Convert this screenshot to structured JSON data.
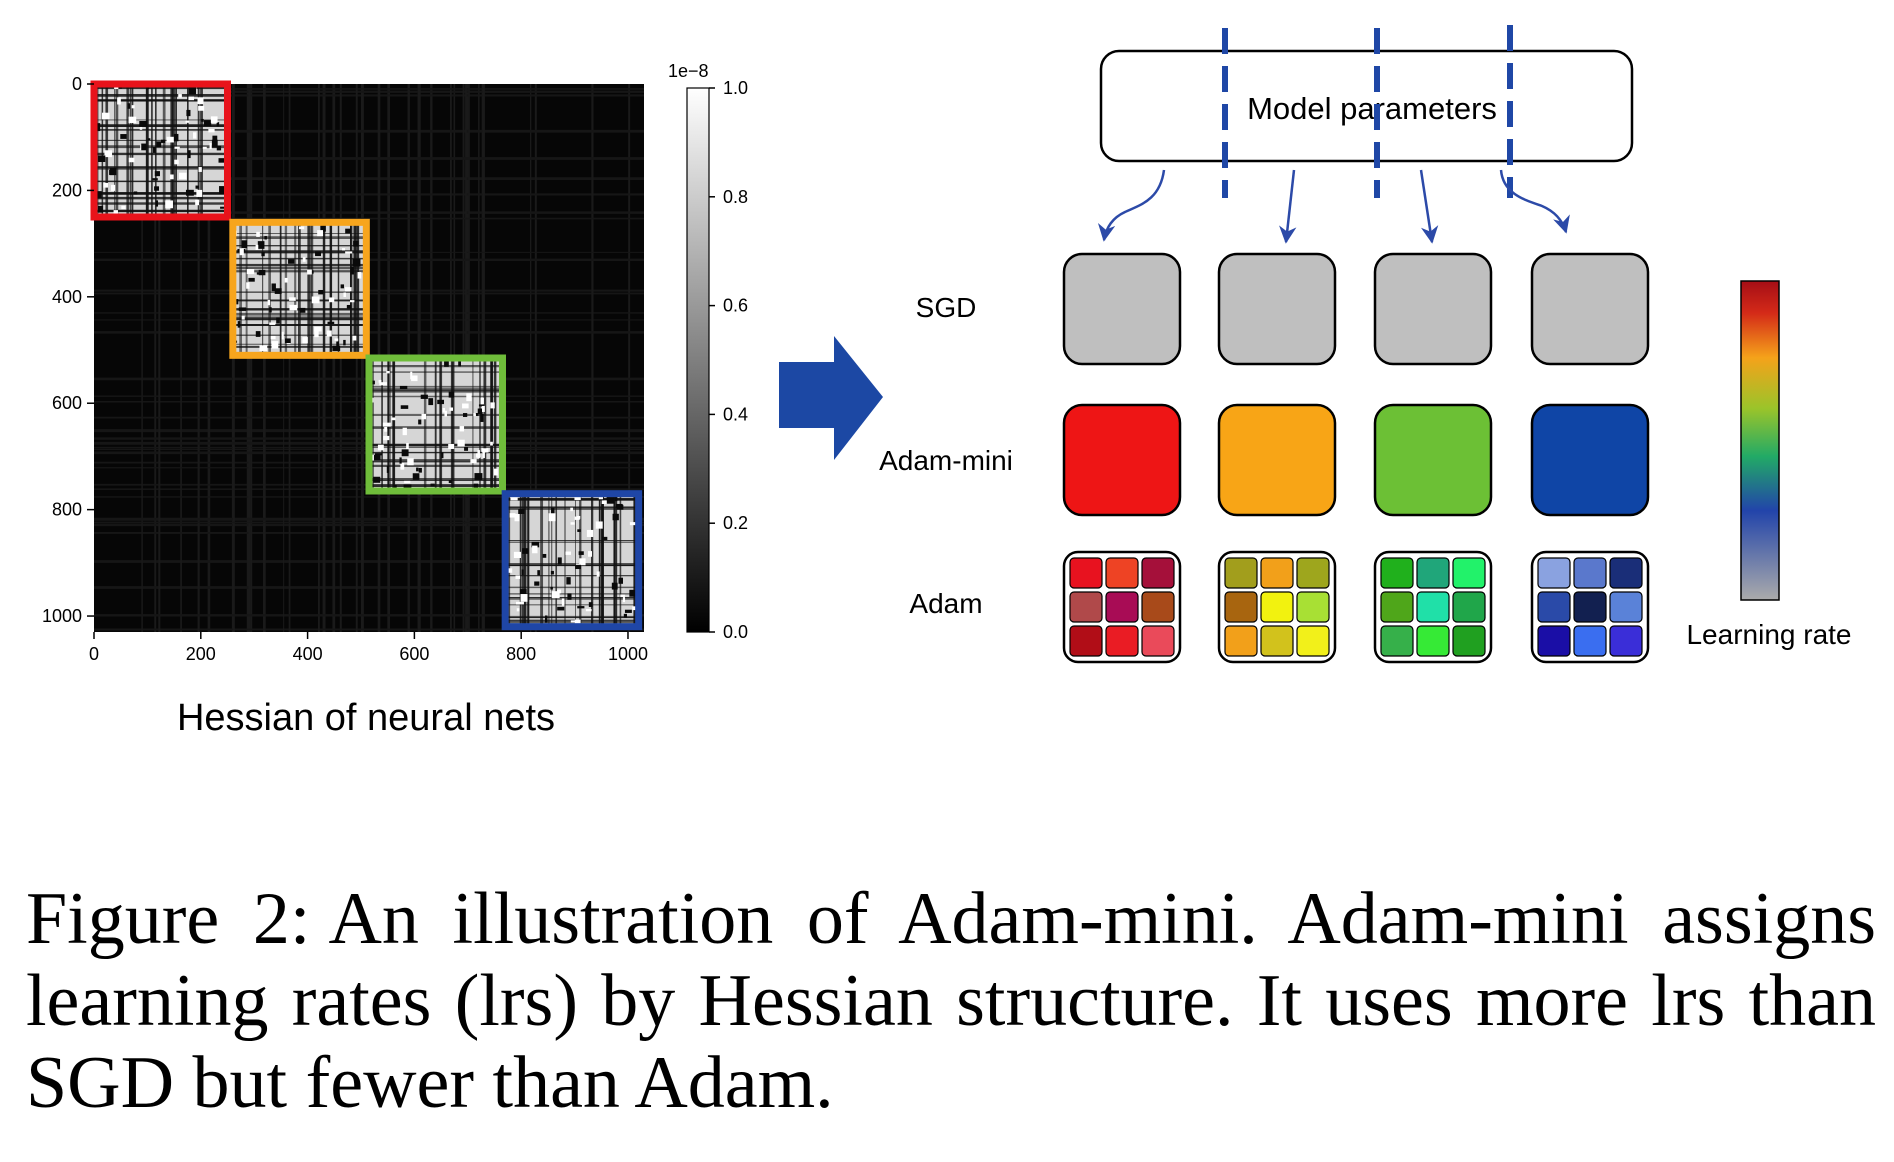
{
  "heatmap": {
    "x_ticks": [
      "0",
      "200",
      "400",
      "600",
      "800",
      "1000"
    ],
    "y_ticks": [
      "0",
      "200",
      "400",
      "600",
      "800",
      "1000"
    ],
    "tick_values": [
      0,
      200,
      400,
      600,
      800,
      1000
    ],
    "range": [
      0,
      1030
    ],
    "xlabel": "Hessian of neural nets",
    "blocks": [
      {
        "start": 0,
        "end": 250,
        "color": "#e8131b"
      },
      {
        "start": 260,
        "end": 510,
        "color": "#f7a51d"
      },
      {
        "start": 515,
        "end": 765,
        "color": "#6fbd3a"
      },
      {
        "start": 770,
        "end": 1020,
        "color": "#1f46a6"
      }
    ],
    "colorbar": {
      "scale_label": "1e−8",
      "ticks": [
        "0.0",
        "0.2",
        "0.4",
        "0.6",
        "0.8",
        "1.0"
      ],
      "tick_values": [
        0.0,
        0.2,
        0.4,
        0.6,
        0.8,
        1.0
      ]
    }
  },
  "diagram": {
    "box_label": "Model parameters",
    "rows": [
      {
        "label": "SGD"
      },
      {
        "label": "Adam-mini"
      },
      {
        "label": "Adam"
      }
    ],
    "sgd_color": "#bfbfbf",
    "adam_mini_colors": [
      "#ee1515",
      "#f8a516",
      "#6cc035",
      "#0f45a6"
    ],
    "adam_colors": [
      [
        "#e8121f",
        "#ee4324",
        "#a5103a",
        "#b0494a",
        "#a80c55",
        "#a84a1a",
        "#b10d17",
        "#ea1c24",
        "#ea4a5a"
      ],
      [
        "#a29e1c",
        "#f2a01a",
        "#9ea61d",
        "#a8650f",
        "#f2f20f",
        "#a8e034",
        "#f2a01a",
        "#d2c21c",
        "#f2f01a"
      ],
      [
        "#20b01c",
        "#20a67a",
        "#22f26a",
        "#4fa61a",
        "#20e0a8",
        "#20a64a",
        "#36b04a",
        "#36ea36",
        "#20a020"
      ],
      [
        "#8aa2e0",
        "#5a78cc",
        "#1a2e78",
        "#2a4aa8",
        "#122050",
        "#5a82d8",
        "#1a0ea6",
        "#3a6ef0",
        "#3a2ed8"
      ]
    ],
    "learning_rate_label": "Learning rate",
    "lr_colorbar_colors": [
      "#ababab",
      "#2244aa",
      "#22aa66",
      "#9ac42a",
      "#f5a21a",
      "#d42a18",
      "#a50e16"
    ]
  },
  "caption": {
    "label": "Figure 2:",
    "text": "An illustration of Adam-mini. Adam-mini assigns learning rates (lrs) by Hessian structure. It uses more lrs than SGD but fewer than Adam."
  }
}
